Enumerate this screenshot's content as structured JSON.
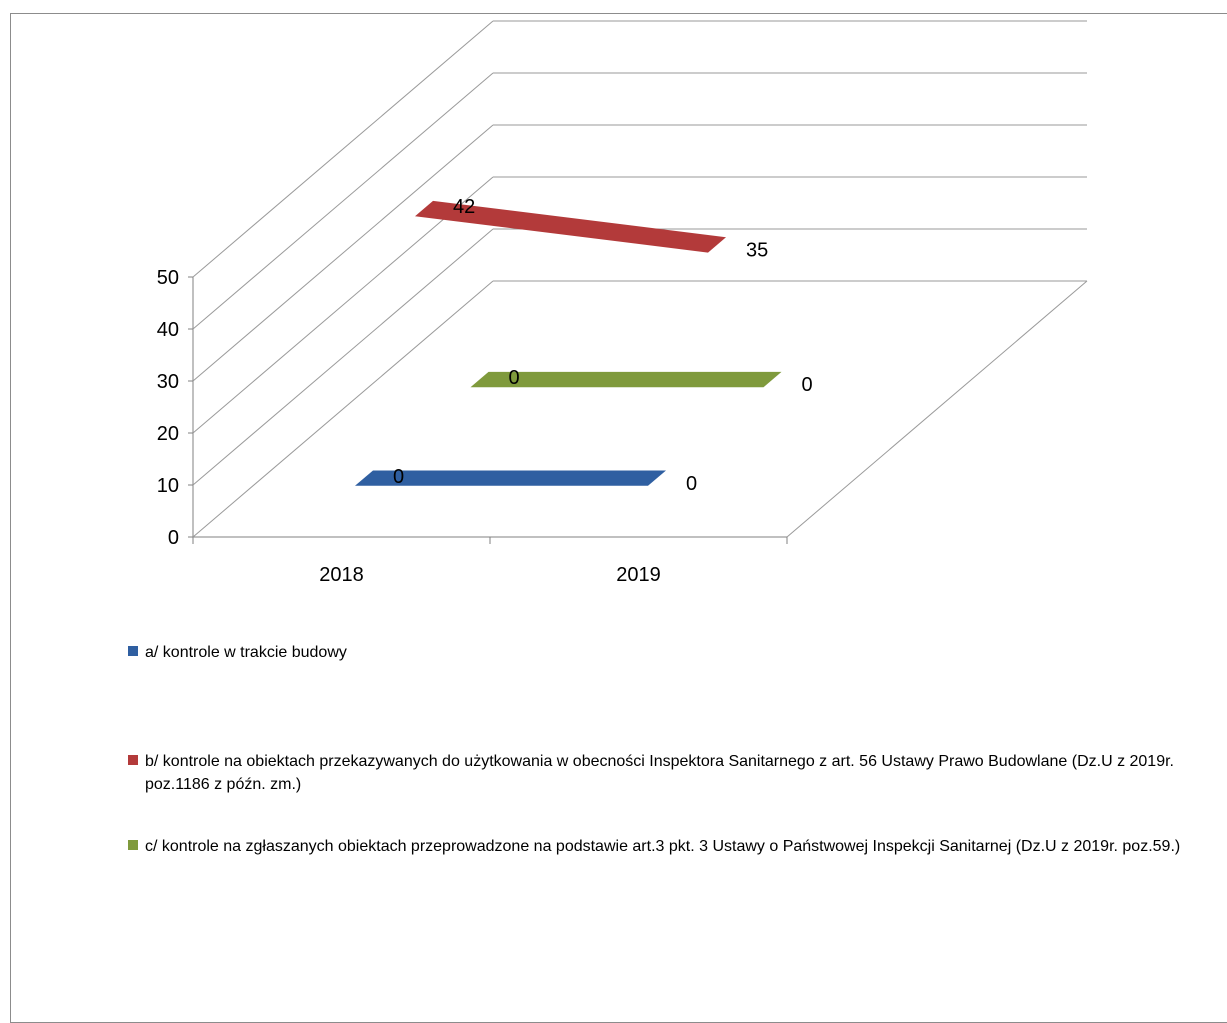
{
  "chart_data": {
    "type": "line",
    "style": "3d-line",
    "categories": [
      "2018",
      "2019"
    ],
    "ylim": [
      0,
      50
    ],
    "yticks": [
      "0",
      "10",
      "20",
      "30",
      "40",
      "50"
    ],
    "grid": true,
    "legend_position": "bottom",
    "series": [
      {
        "name": "a/  kontrole w trakcie budowy",
        "values": [
          0,
          0
        ],
        "labels": [
          "0",
          "0"
        ],
        "color": "#2f5fa1"
      },
      {
        "name": "b/  kontrole na obiektach przekazywanych do  użytkowania  w obecności Inspektora Sanitarnego z art. 56 Ustawy Prawo Budowlane (Dz.U z 2019r. poz.1186 z późn. zm.)",
        "values": [
          42,
          35
        ],
        "labels": [
          "42",
          "35"
        ],
        "color": "#b33a3a"
      },
      {
        "name": "c/ kontrole na zgłaszanych obiektach przeprowadzone na podstawie art.3 pkt. 3 Ustawy o Państwowej Inspekcji Sanitarnej (Dz.U z 2019r. poz.59.)",
        "values": [
          0,
          0
        ],
        "labels": [
          "0",
          "0"
        ],
        "color": "#7f9a3c"
      }
    ]
  }
}
